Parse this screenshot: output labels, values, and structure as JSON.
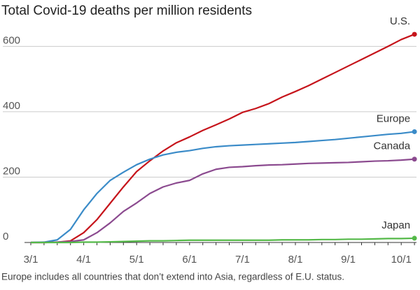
{
  "chart_data": {
    "type": "line",
    "title": "Total Covid-19 deaths per million residents",
    "note": "Europe includes all countries that don’t extend into Asia, regardless of E.U. status.",
    "categories": [
      "3/1",
      null,
      null,
      null,
      "4/1",
      null,
      null,
      null,
      "5/1",
      null,
      null,
      null,
      "6/1",
      null,
      null,
      null,
      "7/1",
      null,
      null,
      null,
      "8/1",
      null,
      null,
      null,
      "9/1",
      null,
      null,
      null,
      "10/1",
      null
    ],
    "series": [
      {
        "name": "U.S.",
        "color": "#c6141b",
        "values": [
          0,
          0,
          1,
          5,
          30,
          70,
          120,
          170,
          217,
          250,
          280,
          305,
          323,
          343,
          360,
          378,
          398,
          410,
          425,
          445,
          462,
          480,
          500,
          520,
          540,
          560,
          580,
          600,
          621,
          637
        ]
      },
      {
        "name": "Europe",
        "color": "#3a8bc8",
        "values": [
          0,
          1,
          8,
          40,
          100,
          150,
          190,
          215,
          238,
          255,
          268,
          276,
          281,
          288,
          293,
          296,
          298,
          300,
          302,
          304,
          306,
          309,
          312,
          315,
          319,
          323,
          327,
          331,
          334,
          339
        ]
      },
      {
        "name": "Canada",
        "color": "#8b4a8f",
        "values": [
          0,
          0,
          1,
          3,
          8,
          30,
          60,
          95,
          121,
          150,
          170,
          182,
          190,
          210,
          224,
          230,
          232,
          235,
          237,
          238,
          240,
          242,
          243,
          244,
          245,
          247,
          249,
          250,
          252,
          255
        ]
      },
      {
        "name": "Japan",
        "color": "#54b948",
        "values": [
          0,
          0,
          0,
          0,
          1,
          1,
          2,
          3,
          4,
          5,
          5,
          6,
          7,
          7,
          7,
          7,
          7,
          7,
          7,
          8,
          8,
          8,
          9,
          9,
          10,
          10,
          11,
          12,
          12,
          13
        ]
      }
    ],
    "ylim": [
      0,
      650
    ],
    "yticks": [
      0,
      200,
      400,
      600
    ],
    "grid": true
  }
}
